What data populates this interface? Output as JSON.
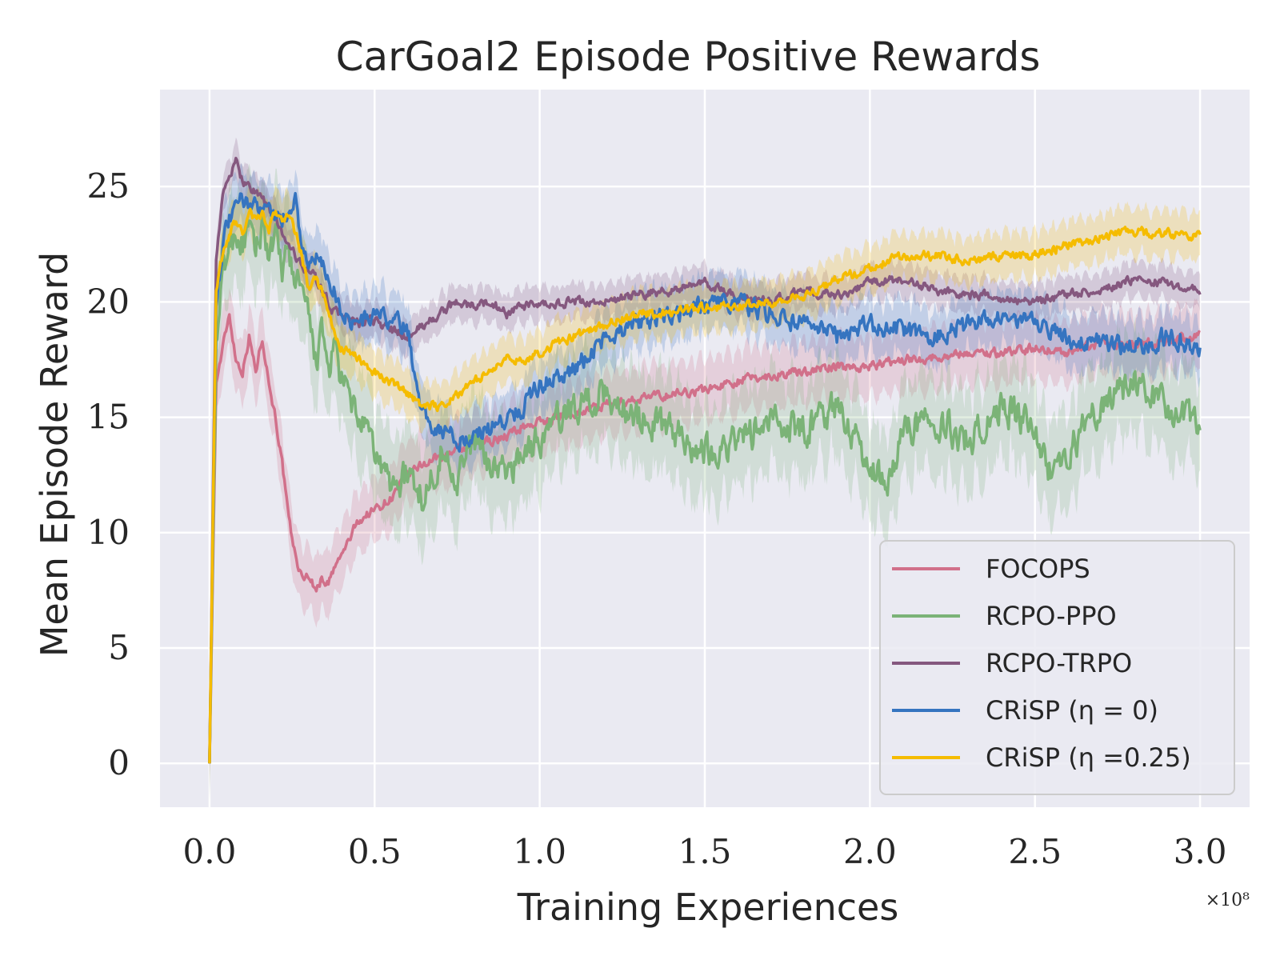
{
  "chart_data": {
    "type": "line",
    "title": "CarGoal2 Episode Positive Rewards",
    "xlabel": "Training Experiences",
    "ylabel": "Mean Episode Reward",
    "x_scale_label": "×10⁸",
    "xlim": [
      -0.15,
      3.15
    ],
    "ylim": [
      -1.9,
      29.2
    ],
    "xticks": [
      0.0,
      0.5,
      1.0,
      1.5,
      2.0,
      2.5,
      3.0
    ],
    "xtick_labels": [
      "0.0",
      "0.5",
      "1.0",
      "1.5",
      "2.0",
      "2.5",
      "3.0"
    ],
    "yticks": [
      0,
      5,
      10,
      15,
      20,
      25
    ],
    "ytick_labels": [
      "0",
      "5",
      "10",
      "15",
      "20",
      "25"
    ],
    "grid": true,
    "legend_position": "lower-right",
    "series": [
      {
        "name": "FOCOPS",
        "color": "#d1708a",
        "x": [
          0.0,
          0.02,
          0.04,
          0.06,
          0.08,
          0.1,
          0.12,
          0.14,
          0.16,
          0.18,
          0.2,
          0.22,
          0.24,
          0.26,
          0.28,
          0.3,
          0.32,
          0.34,
          0.36,
          0.38,
          0.4,
          0.45,
          0.5,
          0.55,
          0.6,
          0.65,
          0.7,
          0.75,
          0.8,
          0.85,
          0.9,
          0.95,
          1.0,
          1.1,
          1.2,
          1.3,
          1.4,
          1.5,
          1.6,
          1.7,
          1.8,
          1.9,
          2.0,
          2.1,
          2.2,
          2.3,
          2.4,
          2.5,
          2.6,
          2.7,
          2.8,
          2.9,
          3.0
        ],
        "y": [
          0.0,
          16.5,
          18.0,
          19.5,
          17.5,
          17.0,
          18.5,
          17.0,
          18.5,
          16.5,
          15.0,
          13.0,
          10.5,
          9.0,
          8.0,
          8.2,
          7.5,
          8.0,
          7.8,
          8.5,
          9.0,
          10.5,
          11.0,
          11.5,
          12.5,
          13.0,
          13.3,
          13.5,
          13.8,
          14.0,
          14.2,
          14.6,
          14.8,
          15.2,
          15.5,
          15.8,
          16.0,
          16.2,
          16.6,
          16.8,
          17.0,
          17.2,
          17.2,
          17.5,
          17.6,
          17.8,
          17.8,
          18.0,
          17.8,
          18.2,
          18.1,
          18.3,
          18.5
        ],
        "band": 1.6
      },
      {
        "name": "RCPO-PPO",
        "color": "#7bb377",
        "x": [
          0.0,
          0.02,
          0.04,
          0.06,
          0.08,
          0.1,
          0.12,
          0.14,
          0.16,
          0.18,
          0.2,
          0.22,
          0.24,
          0.26,
          0.28,
          0.3,
          0.32,
          0.34,
          0.36,
          0.38,
          0.4,
          0.45,
          0.5,
          0.55,
          0.6,
          0.65,
          0.7,
          0.75,
          0.8,
          0.85,
          0.9,
          0.95,
          1.0,
          1.1,
          1.2,
          1.3,
          1.4,
          1.5,
          1.6,
          1.7,
          1.8,
          1.9,
          2.0,
          2.05,
          2.1,
          2.2,
          2.3,
          2.4,
          2.5,
          2.55,
          2.6,
          2.7,
          2.8,
          2.9,
          3.0
        ],
        "y": [
          0.0,
          18.0,
          21.0,
          22.5,
          23.0,
          22.5,
          23.0,
          22.0,
          23.5,
          22.0,
          22.5,
          21.5,
          22.0,
          21.0,
          20.5,
          19.0,
          17.5,
          18.5,
          17.0,
          18.0,
          16.5,
          15.0,
          13.5,
          12.0,
          12.5,
          11.5,
          13.5,
          12.5,
          14.0,
          13.0,
          12.5,
          13.5,
          14.0,
          15.5,
          16.0,
          15.0,
          14.5,
          13.5,
          14.0,
          14.8,
          14.5,
          15.5,
          13.0,
          12.0,
          14.5,
          15.0,
          14.0,
          15.5,
          14.5,
          12.5,
          13.5,
          15.5,
          16.5,
          15.5,
          14.5
        ],
        "band": 2.5
      },
      {
        "name": "RCPO-TRPO",
        "color": "#85587f",
        "x": [
          0.0,
          0.02,
          0.04,
          0.06,
          0.08,
          0.1,
          0.12,
          0.14,
          0.16,
          0.18,
          0.2,
          0.22,
          0.24,
          0.26,
          0.28,
          0.3,
          0.32,
          0.34,
          0.36,
          0.38,
          0.4,
          0.45,
          0.5,
          0.55,
          0.6,
          0.65,
          0.7,
          0.75,
          0.8,
          0.85,
          0.9,
          0.95,
          1.0,
          1.1,
          1.2,
          1.3,
          1.4,
          1.5,
          1.6,
          1.7,
          1.8,
          1.9,
          2.0,
          2.1,
          2.2,
          2.3,
          2.4,
          2.5,
          2.6,
          2.7,
          2.8,
          2.9,
          3.0
        ],
        "y": [
          0.0,
          22.0,
          24.5,
          25.5,
          26.0,
          25.3,
          25.0,
          24.8,
          24.5,
          24.0,
          23.5,
          23.0,
          22.5,
          22.0,
          21.5,
          21.5,
          21.0,
          20.5,
          20.0,
          19.5,
          19.5,
          19.0,
          19.2,
          18.8,
          18.5,
          19.0,
          19.5,
          20.0,
          19.8,
          20.0,
          19.5,
          19.8,
          19.8,
          20.0,
          20.0,
          20.3,
          20.5,
          20.8,
          20.2,
          20.0,
          20.5,
          20.3,
          20.8,
          21.0,
          20.5,
          20.3,
          20.2,
          20.0,
          20.3,
          20.5,
          21.0,
          20.8,
          20.5
        ],
        "band": 0.9
      },
      {
        "name": "CRiSP (η = 0)",
        "color": "#3574c0",
        "x": [
          0.0,
          0.02,
          0.04,
          0.06,
          0.08,
          0.1,
          0.12,
          0.14,
          0.16,
          0.18,
          0.2,
          0.22,
          0.24,
          0.26,
          0.28,
          0.3,
          0.32,
          0.34,
          0.36,
          0.38,
          0.4,
          0.45,
          0.5,
          0.55,
          0.6,
          0.62,
          0.65,
          0.7,
          0.75,
          0.8,
          0.85,
          0.9,
          0.95,
          1.0,
          1.1,
          1.2,
          1.3,
          1.4,
          1.5,
          1.6,
          1.7,
          1.8,
          1.9,
          2.0,
          2.1,
          2.2,
          2.3,
          2.4,
          2.5,
          2.6,
          2.7,
          2.8,
          2.9,
          3.0
        ],
        "y": [
          0.0,
          20.0,
          22.5,
          23.5,
          24.0,
          24.5,
          24.3,
          24.0,
          24.5,
          24.0,
          23.8,
          23.5,
          24.0,
          24.5,
          22.5,
          21.5,
          22.0,
          21.5,
          21.0,
          20.5,
          19.5,
          19.0,
          19.5,
          19.2,
          18.8,
          17.0,
          15.0,
          14.5,
          14.0,
          14.2,
          14.5,
          15.0,
          15.5,
          16.5,
          17.0,
          18.5,
          19.0,
          19.5,
          19.8,
          20.0,
          19.5,
          19.0,
          18.5,
          19.0,
          18.8,
          18.5,
          19.0,
          19.5,
          19.0,
          18.5,
          18.3,
          18.0,
          18.5,
          18.0
        ],
        "band": 1.4
      },
      {
        "name": "CRiSP (η =0.25)",
        "color": "#f5bc00",
        "x": [
          0.0,
          0.02,
          0.04,
          0.06,
          0.08,
          0.1,
          0.12,
          0.14,
          0.16,
          0.18,
          0.2,
          0.22,
          0.24,
          0.26,
          0.28,
          0.3,
          0.32,
          0.34,
          0.36,
          0.38,
          0.4,
          0.45,
          0.5,
          0.55,
          0.6,
          0.65,
          0.7,
          0.75,
          0.8,
          0.85,
          0.9,
          0.95,
          1.0,
          1.1,
          1.2,
          1.3,
          1.4,
          1.5,
          1.6,
          1.7,
          1.8,
          1.9,
          2.0,
          2.1,
          2.2,
          2.3,
          2.4,
          2.5,
          2.6,
          2.7,
          2.8,
          2.9,
          3.0
        ],
        "y": [
          0.0,
          20.5,
          22.0,
          23.0,
          23.5,
          23.0,
          24.0,
          23.5,
          23.8,
          23.2,
          24.0,
          23.5,
          23.8,
          23.0,
          22.0,
          20.5,
          21.0,
          20.5,
          19.5,
          18.5,
          18.0,
          17.5,
          17.0,
          16.5,
          16.0,
          15.5,
          15.5,
          16.0,
          16.5,
          17.0,
          17.5,
          17.5,
          17.8,
          18.5,
          19.0,
          19.5,
          19.5,
          19.8,
          19.8,
          20.0,
          20.2,
          21.0,
          21.5,
          22.0,
          22.0,
          21.8,
          22.0,
          22.0,
          22.5,
          22.8,
          23.0,
          23.0,
          22.8
        ],
        "band": 1.2
      }
    ]
  }
}
